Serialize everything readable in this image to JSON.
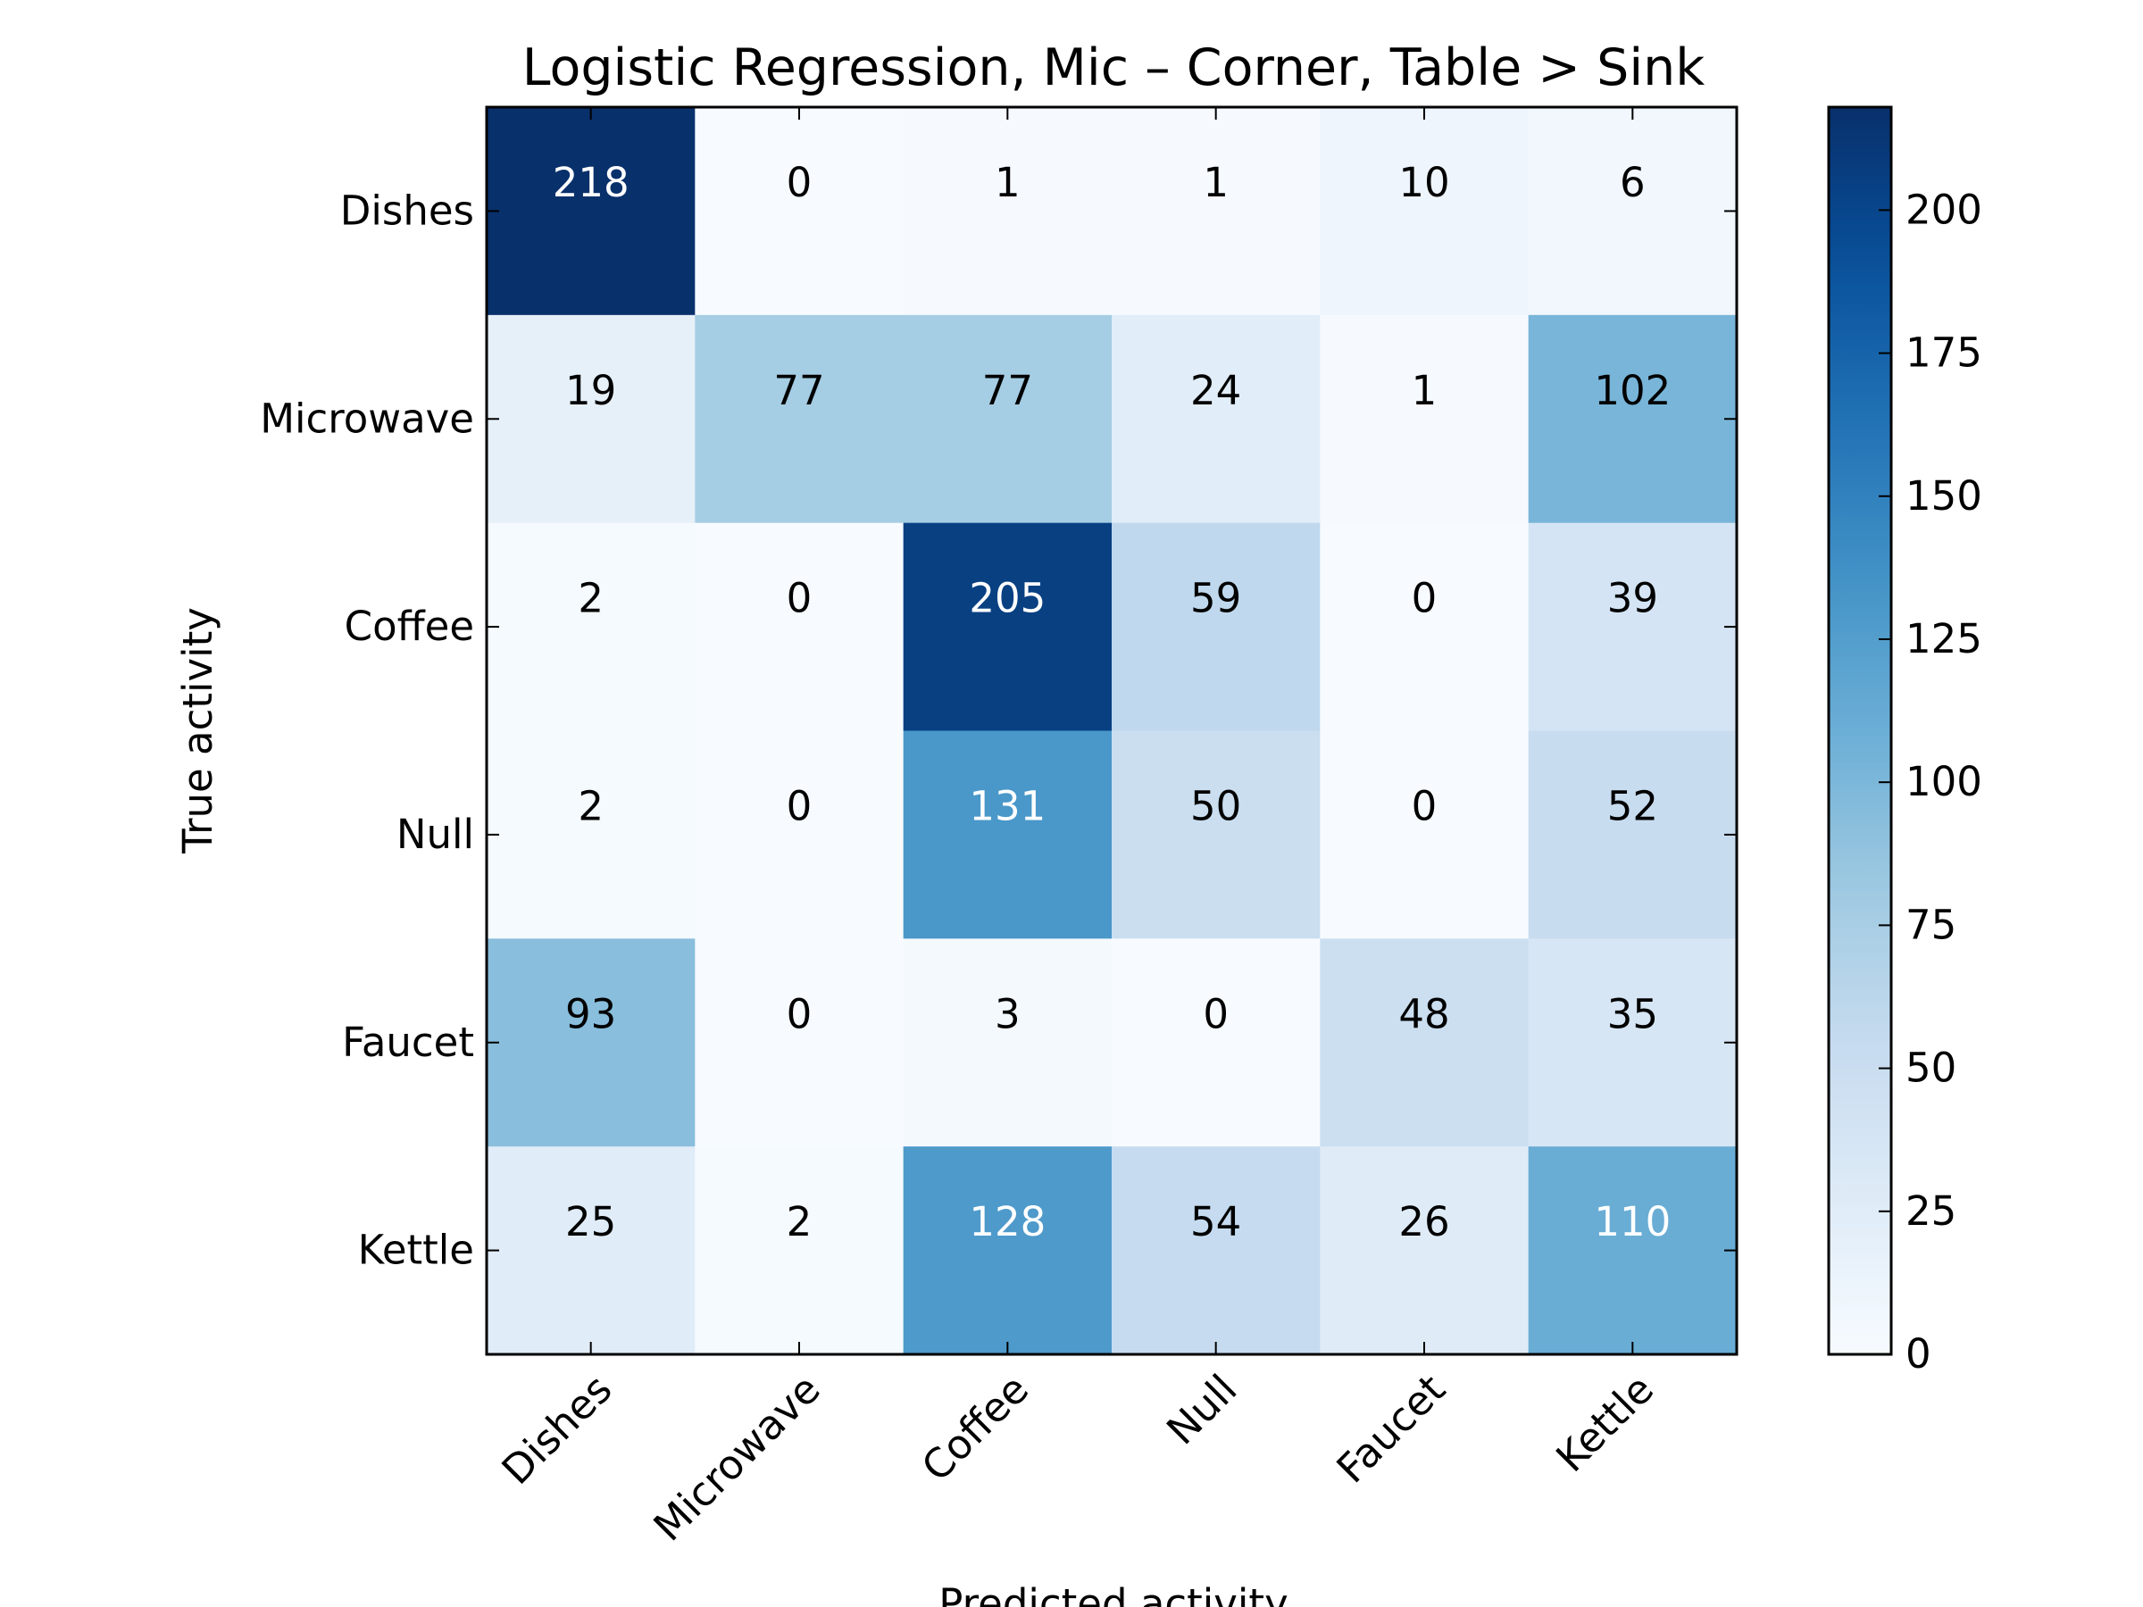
{
  "chart_data": {
    "type": "heatmap",
    "title": "Logistic Regression, Mic – Corner, Table > Sink",
    "xlabel": "Predicted activity",
    "ylabel": "True activity",
    "x_categories": [
      "Dishes",
      "Microwave",
      "Coffee",
      "Null",
      "Faucet",
      "Kettle"
    ],
    "y_categories": [
      "Dishes",
      "Microwave",
      "Coffee",
      "Null",
      "Faucet",
      "Kettle"
    ],
    "matrix": [
      [
        218,
        0,
        1,
        1,
        10,
        6
      ],
      [
        19,
        77,
        77,
        24,
        1,
        102
      ],
      [
        2,
        0,
        205,
        59,
        0,
        39
      ],
      [
        2,
        0,
        131,
        50,
        0,
        52
      ],
      [
        93,
        0,
        3,
        0,
        48,
        35
      ],
      [
        25,
        2,
        128,
        54,
        26,
        110
      ]
    ],
    "colormap": "Blues",
    "colorbar": {
      "min": 0,
      "max": 218,
      "ticks": [
        0,
        25,
        50,
        75,
        100,
        125,
        150,
        175,
        200
      ]
    },
    "colors": {
      "low": "#f7fbff",
      "high": "#08306b",
      "text_dark": "#000000",
      "text_light": "#ffffff"
    }
  }
}
